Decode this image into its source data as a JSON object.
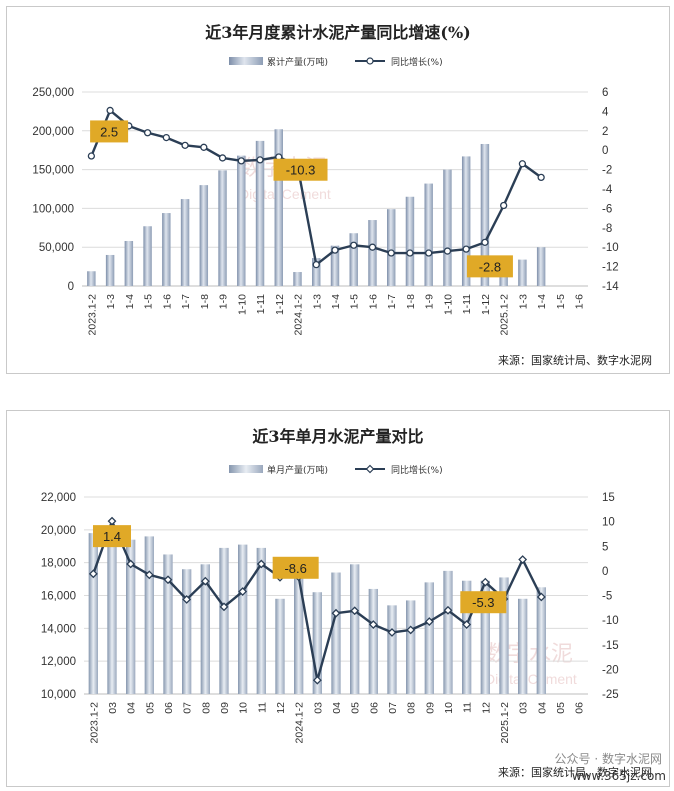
{
  "charts": [
    {
      "title": "近3年月度累计水泥产量同比增速(%)",
      "legend": {
        "bar_label": "累计产量(万吨)",
        "line_label": "同比增长(%)"
      },
      "source": "来源：国家统计局、数字水泥网",
      "watermark": {
        "cn": "数字水泥",
        "en": "Digital Cement"
      },
      "callouts": [
        {
          "text": "2.5",
          "index": 1
        },
        {
          "text": "-10.3",
          "index": 11
        },
        {
          "text": "-2.8",
          "index": 21
        }
      ],
      "yleft_ticks": [
        "250,000",
        "200,000",
        "150,000",
        "100,000",
        "50,000",
        "0"
      ],
      "yright_ticks": [
        "6",
        "4",
        "2",
        "0",
        "-2",
        "-4",
        "-6",
        "-8",
        "-10",
        "-12",
        "-14"
      ]
    },
    {
      "title": "近3年单月水泥产量对比",
      "legend": {
        "bar_label": "单月产量(万吨)",
        "line_label": "同比增长(%)"
      },
      "source": "来源：国家统计局、数字水泥网",
      "watermark": {
        "cn": "数字水泥",
        "en": "Digital Cement"
      },
      "callouts": [
        {
          "text": "1.4",
          "index": 1
        },
        {
          "text": "-8.6",
          "index": 11
        },
        {
          "text": "-5.3",
          "index": 21
        }
      ],
      "yleft_ticks": [
        "22,000",
        "20,000",
        "18,000",
        "16,000",
        "14,000",
        "12,000",
        "10,000"
      ],
      "yright_ticks": [
        "15",
        "10",
        "5",
        "0",
        "-5",
        "-10",
        "-15",
        "-20",
        "-25"
      ]
    }
  ],
  "overlay": {
    "account": "公众号 · 数字水泥网",
    "site": "www.365jz.com"
  },
  "chart_data": [
    {
      "type": "bar",
      "title": "近3年月度累计水泥产量同比增速(%)",
      "categories": [
        "2023.1-2",
        "1-3",
        "1-4",
        "1-5",
        "1-6",
        "1-7",
        "1-8",
        "1-9",
        "1-10",
        "1-11",
        "1-12",
        "2024.1-2",
        "1-3",
        "1-4",
        "1-5",
        "1-6",
        "1-7",
        "1-8",
        "1-9",
        "1-10",
        "1-11",
        "1-12",
        "2025.1-2",
        "1-3",
        "1-4",
        "1-5",
        "1-6"
      ],
      "series": [
        {
          "name": "累计产量(万吨)",
          "axis": "left",
          "type": "bar",
          "values": [
            19000,
            40000,
            58000,
            77000,
            94000,
            112000,
            130000,
            149000,
            168000,
            187000,
            202000,
            18000,
            36000,
            52000,
            68000,
            85000,
            99000,
            115000,
            132000,
            150000,
            167000,
            183000,
            16000,
            34000,
            50000,
            null,
            null
          ]
        },
        {
          "name": "同比增长(%)",
          "axis": "right",
          "type": "line",
          "values": [
            -0.6,
            4.1,
            2.5,
            1.8,
            1.3,
            0.5,
            0.3,
            -0.8,
            -1.1,
            -1.0,
            -0.7,
            -1.6,
            -11.8,
            -10.3,
            -9.8,
            -10.0,
            -10.6,
            -10.6,
            -10.6,
            -10.4,
            -10.2,
            -9.5,
            -5.7,
            -1.4,
            -2.8,
            null,
            null
          ]
        }
      ],
      "yleft_ticks": [
        "250,000",
        "200,000",
        "150,000",
        "100,000",
        "50,000",
        "0"
      ],
      "yright_ticks": [
        "6",
        "4",
        "2",
        "0",
        "-2",
        "-4",
        "-6",
        "-8",
        "-10",
        "-12",
        "-14"
      ],
      "yleft_lim": [
        0,
        250000
      ],
      "yright_lim": [
        -14,
        6
      ],
      "grid": true,
      "legend_position": "top"
    },
    {
      "type": "bar",
      "title": "近3年单月水泥产量对比",
      "categories": [
        "2023.1-2",
        "03",
        "04",
        "05",
        "06",
        "07",
        "08",
        "09",
        "10",
        "11",
        "12",
        "2024.1-2",
        "03",
        "04",
        "05",
        "06",
        "07",
        "08",
        "09",
        "10",
        "11",
        "12",
        "2025.1-2",
        "03",
        "04",
        "05",
        "06"
      ],
      "series": [
        {
          "name": "单月产量(万吨)",
          "axis": "left",
          "type": "bar",
          "values": [
            19800,
            19900,
            19400,
            19600,
            18500,
            17600,
            17900,
            18900,
            19100,
            18900,
            15800,
            18200,
            16200,
            17400,
            17900,
            16400,
            15400,
            15700,
            16800,
            17500,
            16900,
            16900,
            17100,
            15800,
            16500,
            null,
            null
          ]
        },
        {
          "name": "同比增长(%)",
          "axis": "right",
          "type": "line",
          "values": [
            -0.6,
            10.1,
            1.4,
            -0.8,
            -1.8,
            -5.8,
            -2.1,
            -7.3,
            -4.2,
            1.4,
            -1.3,
            -1.2,
            -22.2,
            -8.6,
            -8.1,
            -10.9,
            -12.5,
            -12.0,
            -10.3,
            -8.0,
            -10.9,
            -2.3,
            -5.7,
            2.3,
            -5.3,
            null,
            null
          ]
        }
      ],
      "yleft_ticks": [
        "22,000",
        "20,000",
        "18,000",
        "16,000",
        "14,000",
        "12,000",
        "10,000"
      ],
      "yright_ticks": [
        "15",
        "10",
        "5",
        "0",
        "-5",
        "-10",
        "-15",
        "-20",
        "-25"
      ],
      "yleft_lim": [
        10000,
        22000
      ],
      "yright_lim": [
        -25,
        15
      ],
      "grid": true,
      "legend_position": "top"
    }
  ]
}
